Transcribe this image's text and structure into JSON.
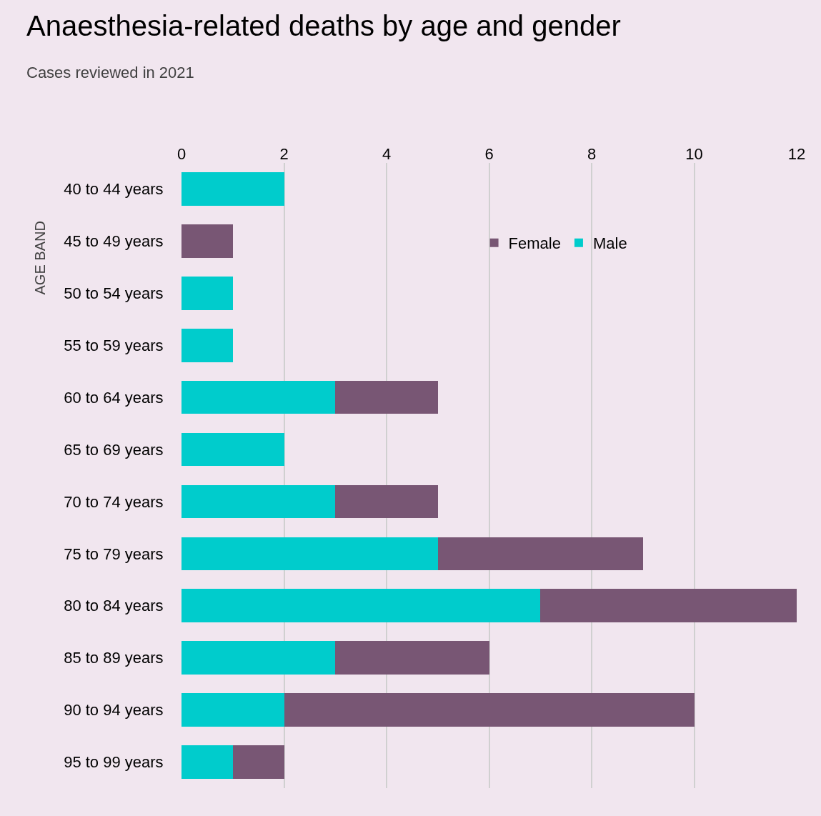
{
  "chart_data": {
    "type": "bar",
    "orientation": "horizontal",
    "stacked": true,
    "title": "Anaesthesia-related deaths by age and gender",
    "subtitle": "Cases reviewed in 2021",
    "ylabel": "AGE BAND",
    "categories": [
      "40 to 44 years",
      "45 to 49 years",
      "50 to 54 years",
      "55 to 59 years",
      "60 to 64 years",
      "65 to 69 years",
      "70 to 74 years",
      "75 to 79 years",
      "80 to 84 years",
      "85 to 89 years",
      "90 to 94 years",
      "95 to 99 years"
    ],
    "series": [
      {
        "name": "Male",
        "color": "#00cccc",
        "values": [
          2,
          0,
          1,
          1,
          3,
          2,
          3,
          5,
          7,
          3,
          2,
          1
        ]
      },
      {
        "name": "Female",
        "color": "#785674",
        "values": [
          0,
          1,
          0,
          0,
          2,
          0,
          2,
          4,
          5,
          3,
          8,
          1
        ]
      }
    ],
    "xlim": [
      0,
      12
    ],
    "xticks": [
      0,
      2,
      4,
      6,
      8,
      10,
      12
    ],
    "grid": "x",
    "legend": "top"
  }
}
